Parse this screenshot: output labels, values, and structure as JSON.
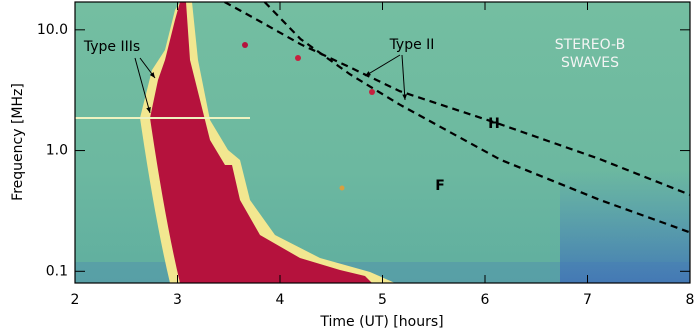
{
  "chart_data": {
    "type": "line",
    "x_label": "Time (UT) [hours]",
    "y_label": "Frequency [MHz]",
    "xlim": [
      2,
      8
    ],
    "xticks": [
      2,
      3,
      4,
      5,
      6,
      7,
      8
    ],
    "ylim": [
      0.08,
      17
    ],
    "log_y": true,
    "yticks": [
      0.1,
      {
        "value": 1,
        "label": "1.0"
      },
      {
        "value": 10,
        "label": "10.0"
      }
    ],
    "annotations": [
      "Type IIIs",
      "Type II",
      "STEREO-B",
      "SWAVES"
    ],
    "series": [
      {
        "name": "H",
        "color": "#000000",
        "dashed": true,
        "x": [
          3.46,
          3.8,
          4.2,
          4.68,
          5.17,
          6.15,
          7.12,
          8
        ],
        "values": [
          17,
          11.8,
          7.6,
          4.9,
          3.1,
          1.65,
          0.85,
          0.43
        ]
      },
      {
        "name": "F",
        "color": "#000000",
        "dashed": true,
        "x": [
          3.85,
          4.2,
          4.68,
          5.17,
          6.15,
          7.12,
          8
        ],
        "values": [
          17,
          8.4,
          4.3,
          2.4,
          0.84,
          0.39,
          0.21
        ]
      }
    ]
  }
}
